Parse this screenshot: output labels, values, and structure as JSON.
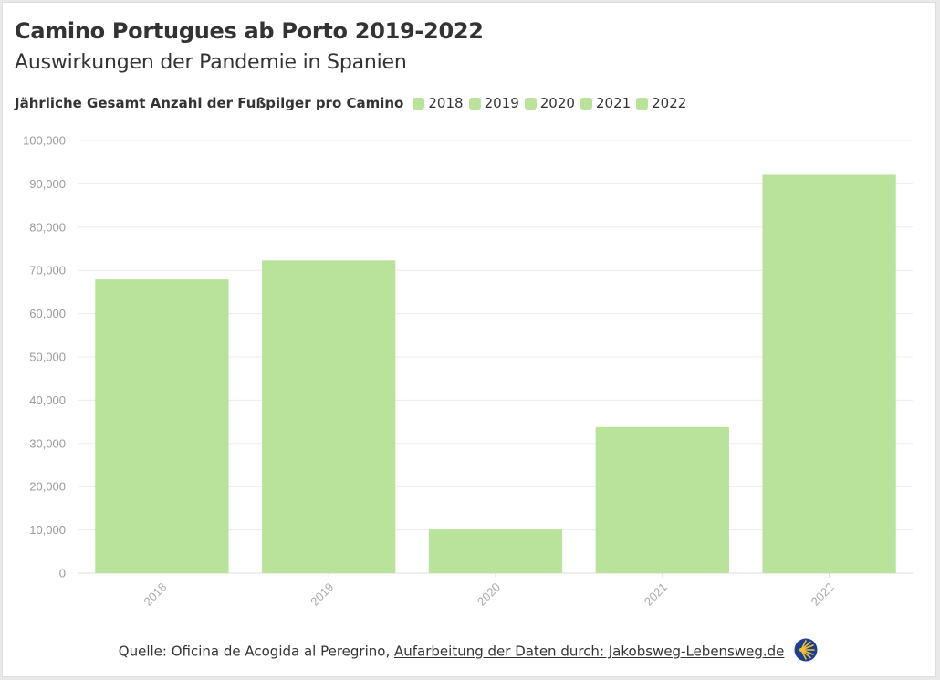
{
  "header": {
    "title": "Camino Portugues ab Porto 2019-2022",
    "subtitle": "Auswirkungen der Pandemie in Spanien"
  },
  "legend": {
    "title": "Jährliche Gesamt Anzahl der Fußpilger pro Camino",
    "items": [
      "2018",
      "2019",
      "2020",
      "2021",
      "2022"
    ]
  },
  "footer": {
    "source_text": "Quelle: Oficina de Acogida al Peregrino,",
    "link_text": "Aufarbeitung der Daten durch: Jakobsweg-Lebensweg.de",
    "icon": "scallop-shell-icon"
  },
  "colors": {
    "bar": "#b9e29a",
    "grid": "#ececec",
    "axis": "#dddddd",
    "text": "#333333",
    "tick": "#9a9a9a"
  },
  "chart_data": {
    "type": "bar",
    "categories": [
      "2018",
      "2019",
      "2020",
      "2021",
      "2022"
    ],
    "values": [
      67900,
      72300,
      10100,
      33800,
      92100
    ],
    "ylim": [
      0,
      100000
    ],
    "yticks": [
      0,
      10000,
      20000,
      30000,
      40000,
      50000,
      60000,
      70000,
      80000,
      90000,
      100000
    ],
    "ytick_labels": [
      "0",
      "10,000",
      "20,000",
      "30,000",
      "40,000",
      "50,000",
      "60,000",
      "70,000",
      "80,000",
      "90,000",
      "100,000"
    ],
    "grid": true,
    "legend_placement": "top-left"
  }
}
